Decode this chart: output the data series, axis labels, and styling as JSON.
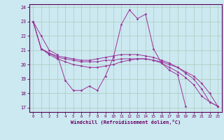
{
  "bg_color": "#cce8f0",
  "grid_color": "#aaccbb",
  "line_color": "#993399",
  "xlim": [
    -0.5,
    23.5
  ],
  "ylim": [
    16.7,
    24.2
  ],
  "xticks": [
    0,
    1,
    2,
    3,
    4,
    5,
    6,
    7,
    8,
    9,
    10,
    11,
    12,
    13,
    14,
    15,
    16,
    17,
    18,
    19,
    20,
    21,
    22,
    23
  ],
  "yticks": [
    17,
    18,
    19,
    20,
    21,
    22,
    23,
    24
  ],
  "xlabel": "Windchill (Refroidissement éolien,°C)",
  "s1x": [
    0,
    1,
    2,
    3,
    4,
    5,
    6,
    7,
    8,
    9,
    10,
    11,
    12,
    13,
    14,
    15,
    16,
    17,
    18,
    19
  ],
  "s1y": [
    23.0,
    22.0,
    21.0,
    20.7,
    18.9,
    18.2,
    18.2,
    18.5,
    18.2,
    19.2,
    20.5,
    22.8,
    23.8,
    23.2,
    23.5,
    21.1,
    20.1,
    19.6,
    19.3,
    17.1
  ],
  "s2x": [
    0,
    1,
    2,
    3,
    4,
    5,
    6,
    7,
    8,
    9,
    10,
    11,
    12,
    13,
    14,
    15,
    16,
    17,
    18,
    19,
    20,
    21,
    22,
    23
  ],
  "s2y": [
    23.0,
    21.1,
    20.8,
    20.6,
    20.5,
    20.4,
    20.3,
    20.3,
    20.4,
    20.5,
    20.6,
    20.7,
    20.7,
    20.7,
    20.6,
    20.5,
    20.3,
    20.1,
    19.8,
    19.4,
    19.0,
    18.3,
    17.4,
    17.1
  ],
  "s3x": [
    0,
    1,
    2,
    3,
    4,
    5,
    6,
    7,
    8,
    9,
    10,
    11,
    12,
    13,
    14,
    15,
    16,
    17,
    18,
    19,
    20,
    21,
    22,
    23
  ],
  "s3y": [
    23.0,
    21.1,
    20.8,
    20.5,
    20.4,
    20.3,
    20.2,
    20.2,
    20.2,
    20.3,
    20.3,
    20.4,
    20.4,
    20.4,
    20.4,
    20.3,
    20.2,
    20.0,
    19.8,
    19.5,
    19.2,
    18.7,
    18.0,
    17.1
  ],
  "s4x": [
    0,
    1,
    2,
    3,
    4,
    5,
    6,
    7,
    8,
    9,
    10,
    11,
    12,
    13,
    14,
    15,
    16,
    17,
    18,
    19,
    20,
    21,
    22,
    23
  ],
  "s4y": [
    23.0,
    21.1,
    20.7,
    20.4,
    20.2,
    20.0,
    19.9,
    19.8,
    19.8,
    19.9,
    20.0,
    20.2,
    20.3,
    20.4,
    20.4,
    20.3,
    20.1,
    19.8,
    19.5,
    19.1,
    18.6,
    17.8,
    17.4,
    17.1
  ]
}
